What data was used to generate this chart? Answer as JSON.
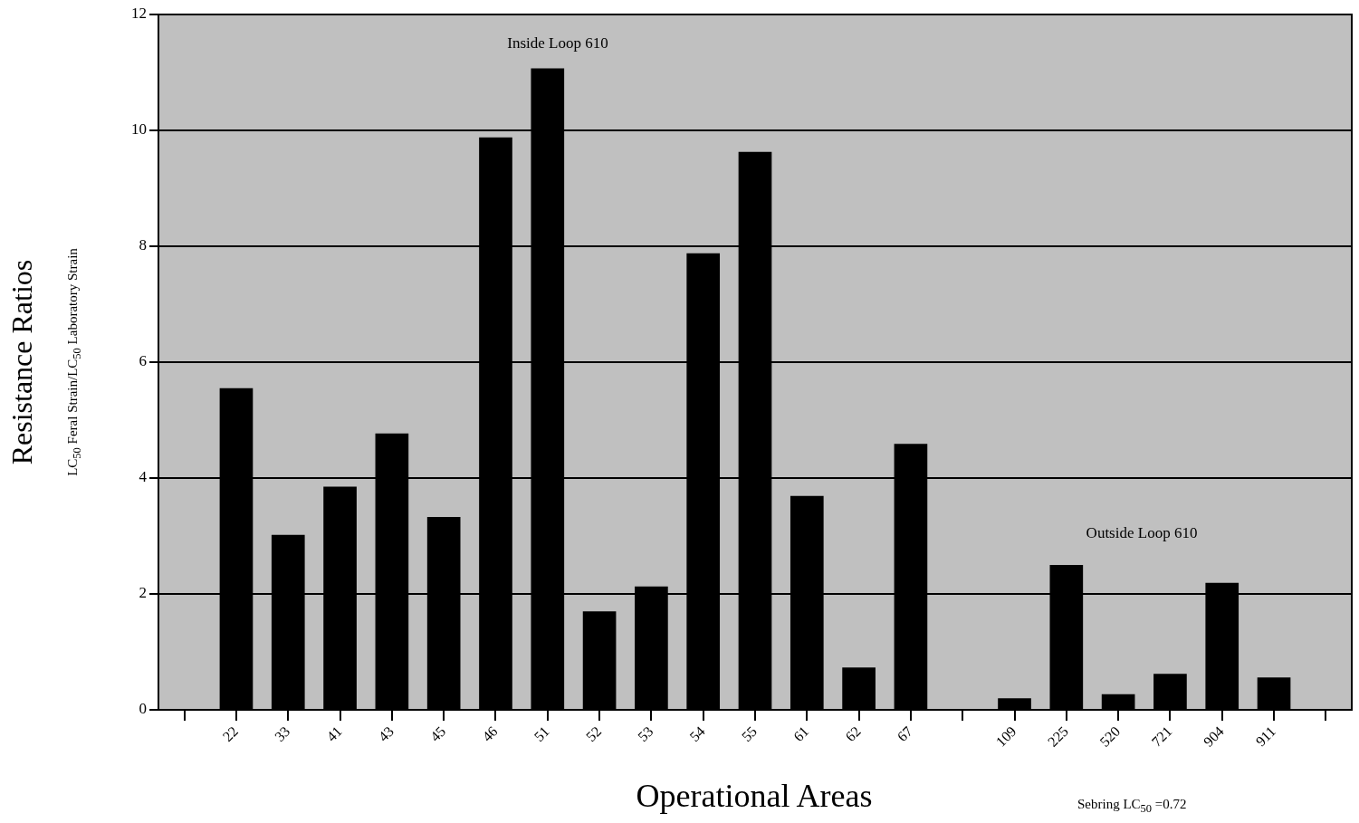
{
  "chart_data": {
    "type": "bar",
    "xlabel": "Operational Areas",
    "ylabel": "Resistance Ratios",
    "subtitle": "LC$_{50}$ Feral Strain/LC$_{50}$ Laboratory Strain",
    "categories": [
      null,
      "22",
      "33",
      "41",
      "43",
      "45",
      "46",
      "51",
      "52",
      "53",
      "54",
      "55",
      "61",
      "62",
      "67",
      null,
      "109",
      "225",
      "520",
      "721",
      "904",
      "911",
      null
    ],
    "values": [
      null,
      5.55,
      3.02,
      3.85,
      4.77,
      3.33,
      9.88,
      11.07,
      1.7,
      2.13,
      7.88,
      9.63,
      3.69,
      0.73,
      4.59,
      null,
      0.2,
      2.5,
      0.27,
      0.62,
      2.19,
      0.56,
      null
    ],
    "color": "#000000",
    "ylim": [
      0,
      12
    ],
    "yticks": [
      0,
      2,
      4,
      6,
      8,
      10,
      12
    ],
    "grid": "y",
    "legend": false,
    "annotations": [
      "Inside Loop 610",
      "Outside Loop 610",
      "Sebring LC$_{50}$ =0.72"
    ]
  }
}
